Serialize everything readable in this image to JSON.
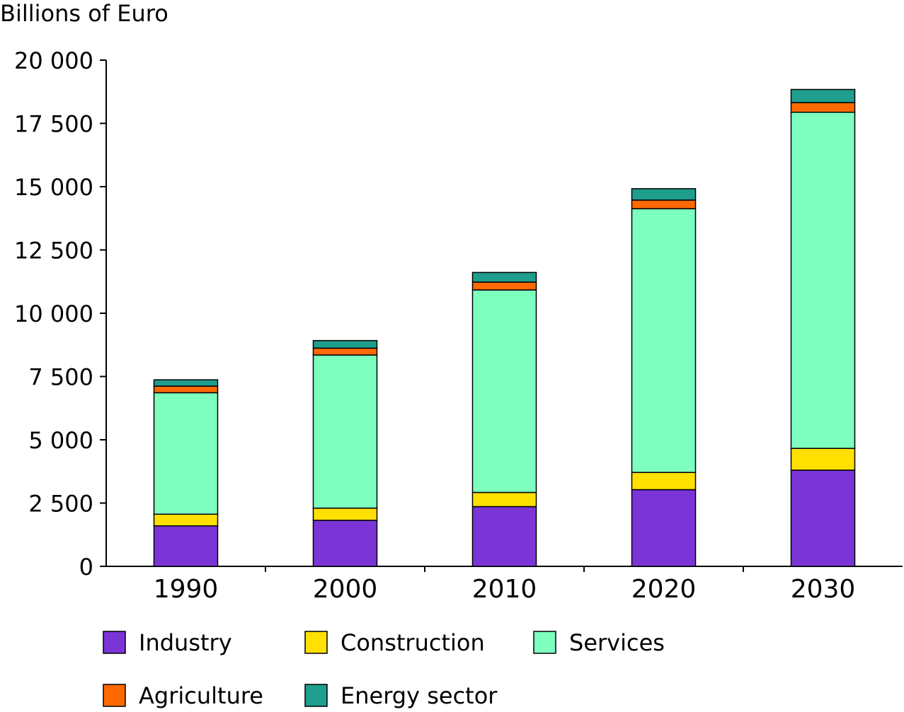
{
  "chart_data": {
    "type": "bar",
    "stacked": true,
    "ylabel": "Billions of Euro",
    "categories": [
      "1990",
      "2000",
      "2010",
      "2020",
      "2030"
    ],
    "ylim": [
      0,
      20000
    ],
    "yticks": [
      0,
      2500,
      5000,
      7500,
      10000,
      12500,
      15000,
      17500,
      20000
    ],
    "ytick_labels": [
      "0",
      "2 500",
      "5 000",
      "7 500",
      "10 000",
      "12 500",
      "15 000",
      "17 500",
      "20 000"
    ],
    "grid": false,
    "legend_position": "bottom",
    "series": [
      {
        "name": "Industry",
        "color": "#7b35d6",
        "values": [
          1600,
          1820,
          2360,
          3030,
          3800
        ]
      },
      {
        "name": "Construction",
        "color": "#ffe000",
        "values": [
          460,
          480,
          560,
          680,
          860
        ]
      },
      {
        "name": "Services",
        "color": "#7dffbf",
        "values": [
          4800,
          6050,
          8000,
          10420,
          13280
        ]
      },
      {
        "name": "Agriculture",
        "color": "#ff6a00",
        "values": [
          260,
          270,
          310,
          340,
          380
        ]
      },
      {
        "name": "Energy sector",
        "color": "#1f9e8e",
        "values": [
          250,
          300,
          380,
          450,
          520
        ]
      }
    ]
  }
}
